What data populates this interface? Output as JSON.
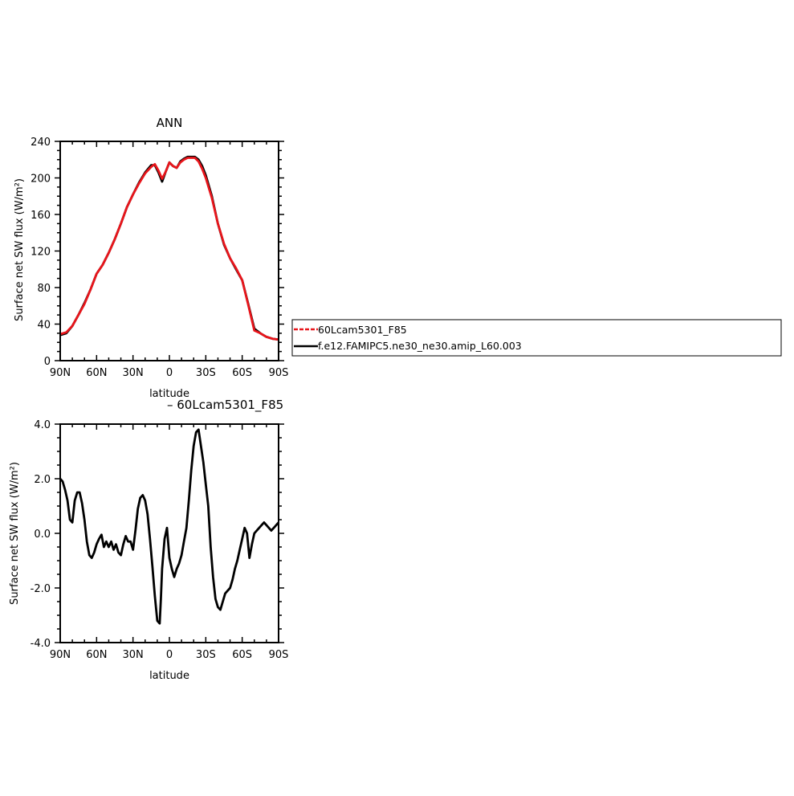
{
  "chart_data": [
    {
      "type": "line",
      "title": "ANN",
      "xlabel": "latitude",
      "ylabel": "Surface net SW flux (W/m²)",
      "xlim": [
        -90,
        90
      ],
      "ylim": [
        0,
        240
      ],
      "x_tick_values": [
        -90,
        -60,
        -30,
        0,
        30,
        60,
        90
      ],
      "x_tick_labels": [
        "90N",
        "60N",
        "30N",
        "0",
        "30S",
        "60S",
        "90S"
      ],
      "y_tick_values": [
        0,
        40,
        80,
        120,
        160,
        200,
        240
      ],
      "y_tick_labels": [
        "0",
        "40",
        "80",
        "120",
        "160",
        "200",
        "240"
      ],
      "grid": false,
      "legend_placement": "right",
      "series": [
        {
          "name": "f.e12.FAMIPC5.ne30_ne30.amip_L60.003",
          "color": "#000000",
          "x": [
            -90,
            -85,
            -80,
            -75,
            -70,
            -65,
            -60,
            -55,
            -50,
            -45,
            -40,
            -35,
            -30,
            -25,
            -20,
            -15,
            -12,
            -9,
            -6,
            -3,
            0,
            3,
            6,
            9,
            12,
            15,
            18,
            21,
            24,
            27,
            30,
            35,
            40,
            45,
            50,
            55,
            60,
            65,
            70,
            75,
            80,
            85,
            90
          ],
          "y": [
            28,
            30,
            38,
            50,
            63,
            78,
            95,
            105,
            118,
            133,
            150,
            168,
            182,
            195,
            206,
            214,
            214,
            206,
            196,
            207,
            217,
            213,
            211,
            218,
            221,
            223,
            223,
            223,
            220,
            213,
            203,
            180,
            150,
            127,
            112,
            100,
            88,
            62,
            35,
            30,
            26,
            24,
            23
          ]
        },
        {
          "name": "60Lcam5301_F85",
          "color": "#e8151b",
          "x": [
            -90,
            -85,
            -80,
            -75,
            -70,
            -65,
            -60,
            -55,
            -50,
            -45,
            -40,
            -35,
            -30,
            -25,
            -20,
            -15,
            -12,
            -9,
            -6,
            -3,
            0,
            3,
            6,
            9,
            12,
            15,
            18,
            21,
            24,
            27,
            30,
            35,
            40,
            45,
            50,
            55,
            60,
            65,
            70,
            75,
            80,
            85,
            90
          ],
          "y": [
            29,
            31,
            38,
            50,
            62,
            78,
            95,
            105,
            118,
            133,
            150,
            168,
            182,
            194,
            205,
            212,
            215,
            208,
            199,
            207,
            217,
            213,
            211,
            217,
            220,
            222,
            222,
            222,
            218,
            210,
            200,
            178,
            150,
            128,
            112,
            101,
            88,
            61,
            33,
            30,
            26,
            24,
            23
          ]
        }
      ]
    },
    {
      "type": "line",
      "title": "– 60Lcam5301_F85",
      "xlabel": "latitude",
      "ylabel": "Surface net SW flux (W/m²)",
      "xlim": [
        -90,
        90
      ],
      "ylim": [
        -4,
        4
      ],
      "x_tick_values": [
        -90,
        -60,
        -30,
        0,
        30,
        60,
        90
      ],
      "x_tick_labels": [
        "90N",
        "60N",
        "30N",
        "0",
        "30S",
        "60S",
        "90S"
      ],
      "y_tick_values": [
        -4,
        -2,
        0,
        2,
        4
      ],
      "y_tick_labels": [
        "-4.0",
        "-2.0",
        "0.0",
        "2.0",
        "4.0"
      ],
      "grid": false,
      "series": [
        {
          "color": "#000000",
          "x": [
            -90,
            -88,
            -86,
            -84,
            -82,
            -80,
            -78,
            -76,
            -74,
            -72,
            -70,
            -68,
            -66,
            -64,
            -62,
            -60,
            -58,
            -56,
            -54,
            -52,
            -50,
            -48,
            -46,
            -44,
            -42,
            -40,
            -38,
            -36,
            -34,
            -32,
            -30,
            -28,
            -26,
            -24,
            -22,
            -20,
            -18,
            -16,
            -14,
            -12,
            -10,
            -8,
            -7,
            -6,
            -4,
            -2,
            0,
            2,
            4,
            6,
            8,
            10,
            12,
            14,
            16,
            18,
            20,
            22,
            24,
            26,
            28,
            30,
            32,
            34,
            36,
            38,
            40,
            42,
            44,
            46,
            48,
            50,
            52,
            54,
            56,
            58,
            60,
            62,
            64,
            66,
            68,
            70,
            72,
            74,
            76,
            78,
            80,
            82,
            84,
            86,
            88,
            90
          ],
          "y": [
            2.0,
            1.9,
            1.6,
            1.2,
            0.5,
            0.4,
            1.2,
            1.5,
            1.5,
            1.1,
            0.5,
            -0.3,
            -0.8,
            -0.9,
            -0.7,
            -0.4,
            -0.2,
            -0.05,
            -0.5,
            -0.3,
            -0.5,
            -0.3,
            -0.6,
            -0.4,
            -0.7,
            -0.8,
            -0.4,
            -0.1,
            -0.3,
            -0.3,
            -0.6,
            0.1,
            0.9,
            1.3,
            1.4,
            1.2,
            0.7,
            -0.2,
            -1.2,
            -2.3,
            -3.2,
            -3.3,
            -2.4,
            -1.3,
            -0.2,
            0.2,
            -0.9,
            -1.3,
            -1.6,
            -1.3,
            -1.1,
            -0.8,
            -0.3,
            0.2,
            1.2,
            2.3,
            3.2,
            3.7,
            3.8,
            3.2,
            2.6,
            1.8,
            1.0,
            -0.5,
            -1.6,
            -2.4,
            -2.7,
            -2.8,
            -2.5,
            -2.2,
            -2.1,
            -2.0,
            -1.7,
            -1.3,
            -1.0,
            -0.6,
            -0.2,
            0.2,
            0.0,
            -0.9,
            -0.4,
            0.0,
            0.1,
            0.2,
            0.3,
            0.4,
            0.3,
            0.2,
            0.1,
            0.2,
            0.3,
            0.4
          ]
        }
      ]
    }
  ],
  "legend": {
    "items": [
      {
        "label": "60Lcam5301_F85",
        "color": "#e8151b",
        "dashed": true
      },
      {
        "label": "f.e12.FAMIPC5.ne30_ne30.amip_L60.003",
        "color": "#000000",
        "dashed": false
      }
    ]
  }
}
